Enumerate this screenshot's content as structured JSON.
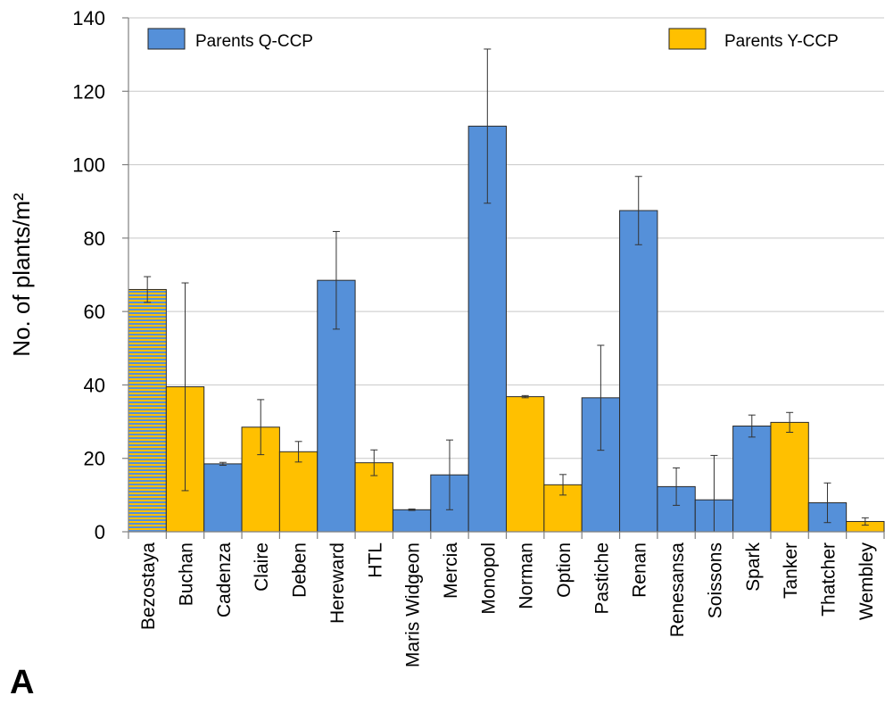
{
  "chart_data": {
    "type": "bar",
    "panel_label": "A",
    "ylabel": "No. of plants/m²",
    "ylim": [
      0,
      140
    ],
    "yticks": [
      "0",
      "20",
      "40",
      "60",
      "80",
      "100",
      "120",
      "140"
    ],
    "grid": "horizontal",
    "legend_placement": "top",
    "categories": [
      "Bezostaya",
      "Buchan",
      "Cadenza",
      "Claire",
      "Deben",
      "Hereward",
      "HTL",
      "Maris Widgeon",
      "Mercia",
      "Monopol",
      "Norman",
      "Option",
      "Pastiche",
      "Renan",
      "Renesansa",
      "Soissons",
      "Spark",
      "Tanker",
      "Thatcher",
      "Wembley"
    ],
    "values": [
      66,
      39.5,
      18.5,
      28.5,
      21.8,
      68.5,
      18.8,
      6,
      15.5,
      110.5,
      36.8,
      12.8,
      36.5,
      87.5,
      12.3,
      8.7,
      28.8,
      29.8,
      7.9,
      2.8
    ],
    "errors": [
      3.5,
      28.3,
      0.4,
      7.5,
      2.8,
      13.3,
      3.5,
      0.2,
      9.5,
      21,
      0.3,
      2.8,
      14.3,
      9.3,
      5.1,
      12.1,
      3,
      2.7,
      5.4,
      1
    ],
    "groups": [
      "both",
      "Y",
      "Q",
      "Y",
      "Y",
      "Q",
      "Y",
      "Q",
      "Q",
      "Q",
      "Y",
      "Y",
      "Q",
      "Q",
      "Q",
      "Q",
      "Q",
      "Y",
      "Q",
      "Y"
    ],
    "series": [
      {
        "key": "Q",
        "name": "Parents Q-CCP",
        "color": "#5590d9"
      },
      {
        "key": "Y",
        "name": "Parents Y-CCP",
        "color": "#ffc000"
      }
    ]
  }
}
